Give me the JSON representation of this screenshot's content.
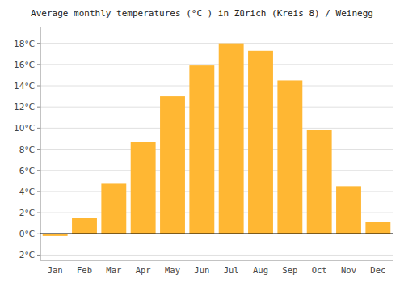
{
  "chart_data": {
    "type": "bar",
    "title": "Average monthly temperatures (°C ) in Zürich (Kreis 8) / Weinegg",
    "categories": [
      "Jan",
      "Feb",
      "Mar",
      "Apr",
      "May",
      "Jun",
      "Jul",
      "Aug",
      "Sep",
      "Oct",
      "Nov",
      "Dec"
    ],
    "values": [
      -0.2,
      1.5,
      4.8,
      8.7,
      13.0,
      15.9,
      18.0,
      17.3,
      14.5,
      9.8,
      4.5,
      1.1
    ],
    "color": "#FFB733",
    "ylim": [
      -2.5,
      19.5
    ],
    "yticks": [
      {
        "value": -2,
        "label": "-2°C"
      },
      {
        "value": 0,
        "label": "0°C"
      },
      {
        "value": 2,
        "label": "2°C"
      },
      {
        "value": 4,
        "label": "4°C"
      },
      {
        "value": 6,
        "label": "6°C"
      },
      {
        "value": 8,
        "label": "8°C"
      },
      {
        "value": 10,
        "label": "10°C"
      },
      {
        "value": 12,
        "label": "12°C"
      },
      {
        "value": 14,
        "label": "14°C"
      },
      {
        "value": 16,
        "label": "16°C"
      },
      {
        "value": 18,
        "label": "18°C"
      }
    ],
    "grid": true
  }
}
